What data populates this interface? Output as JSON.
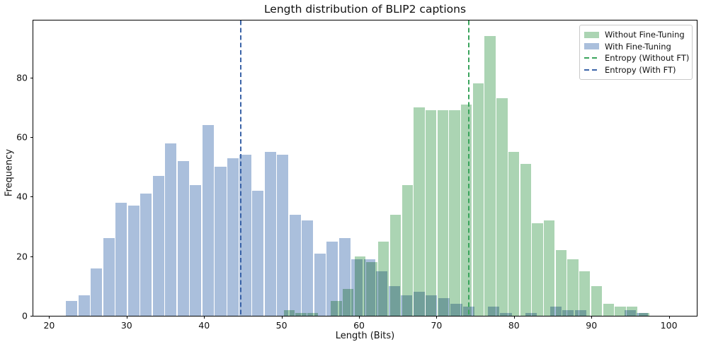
{
  "title": "Length distribution of BLIP2 captions",
  "xlabel": "Length (Bits)",
  "ylabel": "Frequency",
  "legend": {
    "items": [
      {
        "label": "Without Fine-Tuning",
        "type": "patch",
        "color": "#abd4b3"
      },
      {
        "label": "With Fine-Tuning",
        "type": "patch",
        "color": "#aabfdc"
      },
      {
        "label": "Entropy (Without FT)",
        "type": "dashed-line",
        "color": "#3aa45c"
      },
      {
        "label": "Entropy (With FT)",
        "type": "dashed-line",
        "color": "#3b64a8"
      }
    ]
  },
  "chart_data": {
    "type": "histogram",
    "title": "Length distribution of BLIP2 captions",
    "xlabel": "Length (Bits)",
    "ylabel": "Frequency",
    "xlim": [
      17.95,
      103.6
    ],
    "ylim": [
      0,
      99.2
    ],
    "xticks": [
      20,
      30,
      40,
      50,
      60,
      70,
      80,
      90,
      100
    ],
    "yticks": [
      0,
      20,
      40,
      60,
      80
    ],
    "grid": false,
    "legend_position": "upper right",
    "overlap_color": "#7aa3af",
    "series": [
      {
        "name": "Without Fine-Tuning",
        "color": "#abd4b3",
        "bin_start": 50.2,
        "bin_width": 1.527,
        "frequencies": [
          2,
          1,
          1,
          0,
          5,
          9,
          20,
          18,
          25,
          34,
          44,
          70,
          69,
          69,
          69,
          71,
          78,
          94,
          73,
          55,
          51,
          31,
          32,
          22,
          19,
          15,
          10,
          4,
          3,
          3,
          1,
          0
        ]
      },
      {
        "name": "With Fine-Tuning",
        "color": "#aabfdc",
        "blend": true,
        "bin_start": 22.1,
        "bin_width": 1.602,
        "frequencies": [
          5,
          7,
          16,
          26,
          38,
          37,
          41,
          47,
          58,
          52,
          44,
          64,
          50,
          53,
          54,
          42,
          55,
          54,
          34,
          32,
          21,
          25,
          26,
          19,
          19,
          15,
          10,
          7,
          8,
          7,
          6,
          4,
          3,
          0,
          3,
          1,
          0,
          1,
          0,
          3,
          2,
          2,
          0,
          0,
          0,
          2,
          1
        ]
      }
    ],
    "vlines": [
      {
        "name": "Entropy (Without FT)",
        "x": 74.2,
        "color": "#3aa45c",
        "style": "dashed"
      },
      {
        "name": "Entropy (With FT)",
        "x": 44.7,
        "color": "#3b64a8",
        "style": "dashed"
      }
    ]
  }
}
